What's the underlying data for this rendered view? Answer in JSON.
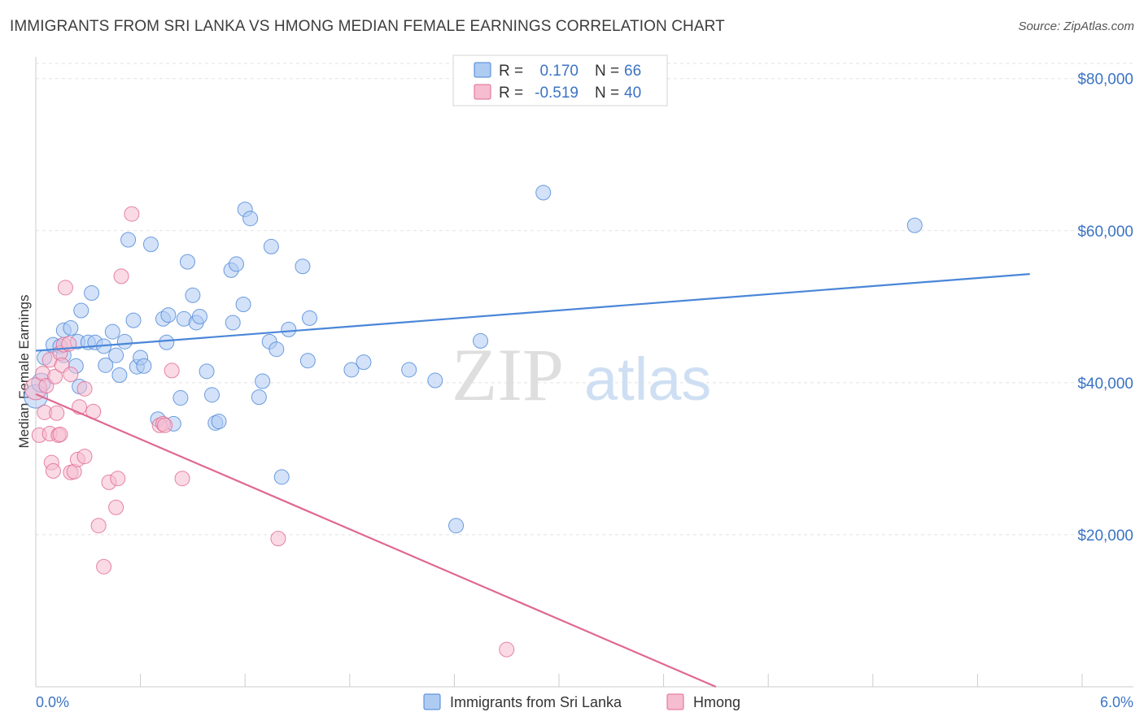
{
  "header": {
    "title": "IMMIGRANTS FROM SRI LANKA VS HMONG MEDIAN FEMALE EARNINGS CORRELATION CHART",
    "source": "Source: ZipAtlas.com"
  },
  "watermark": {
    "zip": "ZIP",
    "atlas": "atlas"
  },
  "colors": {
    "blue": "#4a86d8",
    "blue_fill": "#aecbf2",
    "pink": "#e06890",
    "pink_fill": "#f6bccf",
    "axis_value": "#3b74c4",
    "grid": "#e2e2e2"
  },
  "legend": {
    "rows": [
      {
        "r_label": "R =",
        "r_value": "0.170",
        "n_label": "N =",
        "n_value": "66"
      },
      {
        "r_label": "R =",
        "r_value": "-0.519",
        "n_label": "N =",
        "n_value": "40"
      }
    ]
  },
  "bottom_legend": {
    "blue_label": "Immigrants from Sri Lanka",
    "pink_label": "Hmong"
  },
  "chart_data": {
    "type": "scatter",
    "title": "IMMIGRANTS FROM SRI LANKA VS HMONG MEDIAN FEMALE EARNINGS CORRELATION CHART",
    "xlabel": "",
    "ylabel": "Median Female Earnings",
    "xlim": [
      0,
      6
    ],
    "ylim": [
      0,
      82000
    ],
    "x_tick_labels": [
      "0.0%",
      "6.0%"
    ],
    "y_ticks": [
      20000,
      40000,
      60000,
      80000
    ],
    "y_tick_labels": [
      "$20,000",
      "$40,000",
      "$60,000",
      "$80,000"
    ],
    "series": [
      {
        "name": "Immigrants from Sri Lanka",
        "color": "#4a86d8",
        "R": 0.17,
        "N": 66,
        "trend": {
          "x": [
            0.0,
            5.7
          ],
          "y": [
            44200,
            54300
          ]
        },
        "points": [
          [
            0.0,
            38200,
            1.6
          ],
          [
            0.03,
            40000,
            1.3
          ],
          [
            0.05,
            43300,
            1.0
          ],
          [
            0.1,
            45000,
            1.0
          ],
          [
            0.14,
            44800,
            1.0
          ],
          [
            0.16,
            43600,
            1.0
          ],
          [
            0.16,
            46900,
            1.0
          ],
          [
            0.2,
            47200,
            1.0
          ],
          [
            0.23,
            42200,
            1.0
          ],
          [
            0.24,
            45400,
            1.0
          ],
          [
            0.25,
            39500,
            1.0
          ],
          [
            0.26,
            49500,
            1.0
          ],
          [
            0.3,
            45300,
            1.0
          ],
          [
            0.32,
            51800,
            1.0
          ],
          [
            0.34,
            45300,
            1.0
          ],
          [
            0.39,
            44800,
            1.0
          ],
          [
            0.4,
            42300,
            1.0
          ],
          [
            0.44,
            46700,
            1.0
          ],
          [
            0.46,
            43600,
            1.0
          ],
          [
            0.48,
            41000,
            1.0
          ],
          [
            0.51,
            45400,
            1.0
          ],
          [
            0.53,
            58800,
            1.0
          ],
          [
            0.56,
            48200,
            1.0
          ],
          [
            0.58,
            42100,
            1.0
          ],
          [
            0.6,
            43300,
            1.0
          ],
          [
            0.62,
            42200,
            1.0
          ],
          [
            0.66,
            58200,
            1.0
          ],
          [
            0.7,
            35200,
            1.0
          ],
          [
            0.73,
            48400,
            1.0
          ],
          [
            0.75,
            45300,
            1.0
          ],
          [
            0.76,
            48900,
            1.0
          ],
          [
            0.79,
            34600,
            1.0
          ],
          [
            0.83,
            38000,
            1.0
          ],
          [
            0.85,
            48400,
            1.0
          ],
          [
            0.87,
            55900,
            1.0
          ],
          [
            0.9,
            51500,
            1.0
          ],
          [
            0.92,
            47900,
            1.0
          ],
          [
            0.94,
            48700,
            1.0
          ],
          [
            0.98,
            41500,
            1.0
          ],
          [
            1.01,
            38400,
            1.0
          ],
          [
            1.03,
            34700,
            1.0
          ],
          [
            1.05,
            34900,
            1.0
          ],
          [
            1.12,
            54800,
            1.0
          ],
          [
            1.13,
            47900,
            1.0
          ],
          [
            1.15,
            55600,
            1.0
          ],
          [
            1.19,
            50300,
            1.0
          ],
          [
            1.2,
            62800,
            1.0
          ],
          [
            1.23,
            61600,
            1.0
          ],
          [
            1.28,
            38100,
            1.0
          ],
          [
            1.3,
            40200,
            1.0
          ],
          [
            1.34,
            45400,
            1.0
          ],
          [
            1.35,
            57900,
            1.0
          ],
          [
            1.38,
            44400,
            1.0
          ],
          [
            1.41,
            27600,
            1.0
          ],
          [
            1.45,
            47000,
            1.0
          ],
          [
            1.53,
            55300,
            1.0
          ],
          [
            1.56,
            42900,
            1.0
          ],
          [
            1.57,
            48500,
            1.0
          ],
          [
            1.81,
            41700,
            1.0
          ],
          [
            1.88,
            42700,
            1.0
          ],
          [
            2.14,
            41700,
            1.0
          ],
          [
            2.29,
            40300,
            1.0
          ],
          [
            2.41,
            21200,
            1.0
          ],
          [
            2.55,
            45500,
            1.0
          ],
          [
            2.91,
            65000,
            1.0
          ],
          [
            5.04,
            60700,
            1.0
          ]
        ]
      },
      {
        "name": "Hmong",
        "color": "#e06890",
        "R": -0.519,
        "N": 40,
        "trend": {
          "x": [
            0.0,
            3.9
          ],
          "y": [
            38500,
            0
          ]
        },
        "points": [
          [
            0.0,
            39200,
            1.5
          ],
          [
            0.02,
            33100,
            1.0
          ],
          [
            0.04,
            41200,
            1.0
          ],
          [
            0.05,
            36100,
            1.0
          ],
          [
            0.06,
            39600,
            1.0
          ],
          [
            0.08,
            33300,
            1.0
          ],
          [
            0.08,
            43000,
            1.0
          ],
          [
            0.09,
            29500,
            1.0
          ],
          [
            0.1,
            28400,
            1.0
          ],
          [
            0.11,
            40800,
            1.0
          ],
          [
            0.12,
            36000,
            1.0
          ],
          [
            0.13,
            33100,
            1.0
          ],
          [
            0.14,
            33200,
            1.0
          ],
          [
            0.14,
            43900,
            1.0
          ],
          [
            0.15,
            42300,
            1.0
          ],
          [
            0.16,
            45000,
            1.0
          ],
          [
            0.17,
            52500,
            1.0
          ],
          [
            0.19,
            45100,
            1.0
          ],
          [
            0.2,
            28200,
            1.0
          ],
          [
            0.2,
            41100,
            1.0
          ],
          [
            0.22,
            28300,
            1.0
          ],
          [
            0.24,
            29900,
            1.0
          ],
          [
            0.25,
            36800,
            1.0
          ],
          [
            0.28,
            30300,
            1.0
          ],
          [
            0.28,
            39200,
            1.0
          ],
          [
            0.33,
            36200,
            1.0
          ],
          [
            0.36,
            21200,
            1.0
          ],
          [
            0.39,
            15800,
            1.0
          ],
          [
            0.42,
            26900,
            1.0
          ],
          [
            0.46,
            23600,
            1.0
          ],
          [
            0.47,
            27400,
            1.0
          ],
          [
            0.49,
            54000,
            1.0
          ],
          [
            0.55,
            62200,
            1.0
          ],
          [
            0.71,
            34400,
            1.0
          ],
          [
            0.73,
            34600,
            1.0
          ],
          [
            0.74,
            34400,
            1.0
          ],
          [
            0.78,
            41600,
            1.0
          ],
          [
            0.84,
            27400,
            1.0
          ],
          [
            1.39,
            19500,
            1.0
          ],
          [
            2.7,
            4900,
            1.0
          ]
        ]
      }
    ]
  }
}
